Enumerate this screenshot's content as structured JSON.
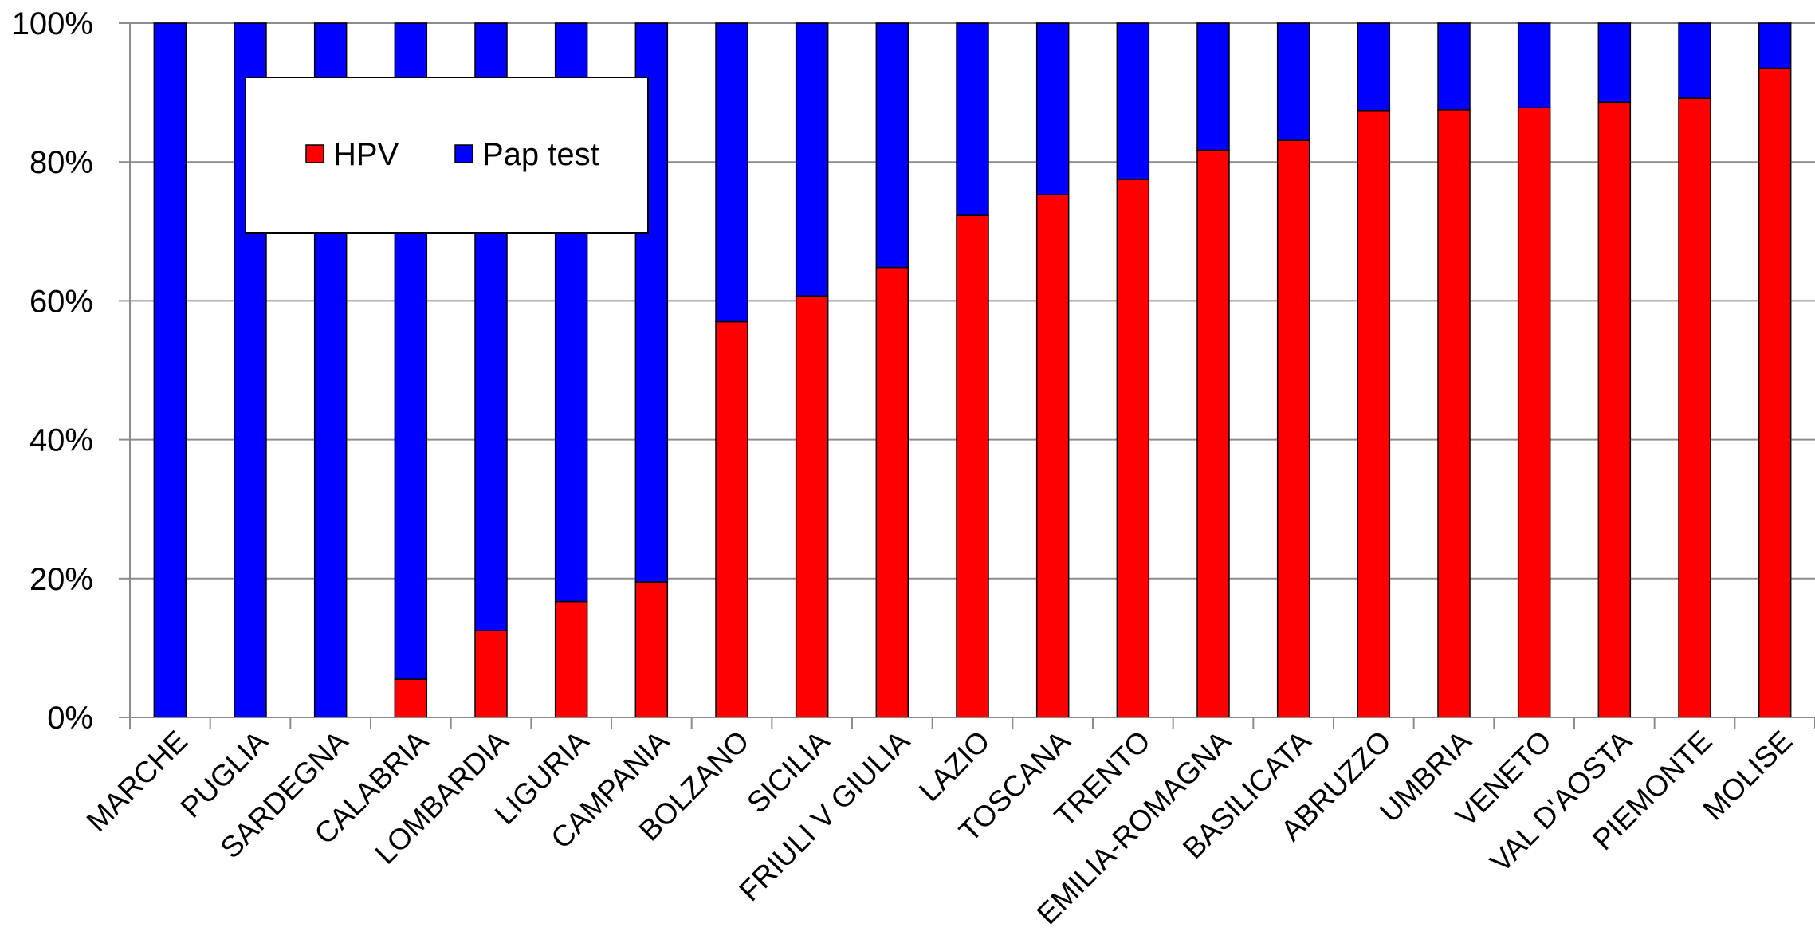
{
  "chart_data": {
    "type": "bar",
    "stacked": "percent",
    "categories": [
      "MARCHE",
      "PUGLIA",
      "SARDEGNA",
      "CALABRIA",
      "LOMBARDIA",
      "LIGURIA",
      "CAMPANIA",
      "BOLZANO",
      "SICILIA",
      "FRIULI V GIULIA",
      "LAZIO",
      "TOSCANA",
      "TRENTO",
      "EMILIA-ROMAGNA",
      "BASILICATA",
      "ABRUZZO",
      "UMBRIA",
      "VENETO",
      "VAL D'AOSTA",
      "PIEMONTE",
      "MOLISE"
    ],
    "series": [
      {
        "name": "HPV",
        "color": "#ff0000",
        "values": [
          0,
          0,
          0,
          5.5,
          12.5,
          16.7,
          19.5,
          57,
          60.7,
          64.8,
          72.3,
          75.3,
          77.5,
          81.7,
          83.1,
          87.4,
          87.5,
          87.8,
          88.6,
          89.2,
          93.5
        ]
      },
      {
        "name": "Pap test",
        "color": "#0000ff",
        "values": [
          100,
          100,
          100,
          94.5,
          87.5,
          83.3,
          80.5,
          43,
          39.3,
          35.2,
          27.7,
          24.7,
          22.5,
          18.3,
          16.9,
          12.6,
          12.5,
          12.2,
          11.4,
          10.8,
          6.5
        ]
      }
    ],
    "yticks": [
      "0%",
      "20%",
      "40%",
      "60%",
      "80%",
      "100%"
    ],
    "ylim": [
      0,
      100
    ],
    "grid": true,
    "legend": {
      "position": "top-left",
      "entries": [
        "HPV",
        "Pap test"
      ]
    }
  }
}
